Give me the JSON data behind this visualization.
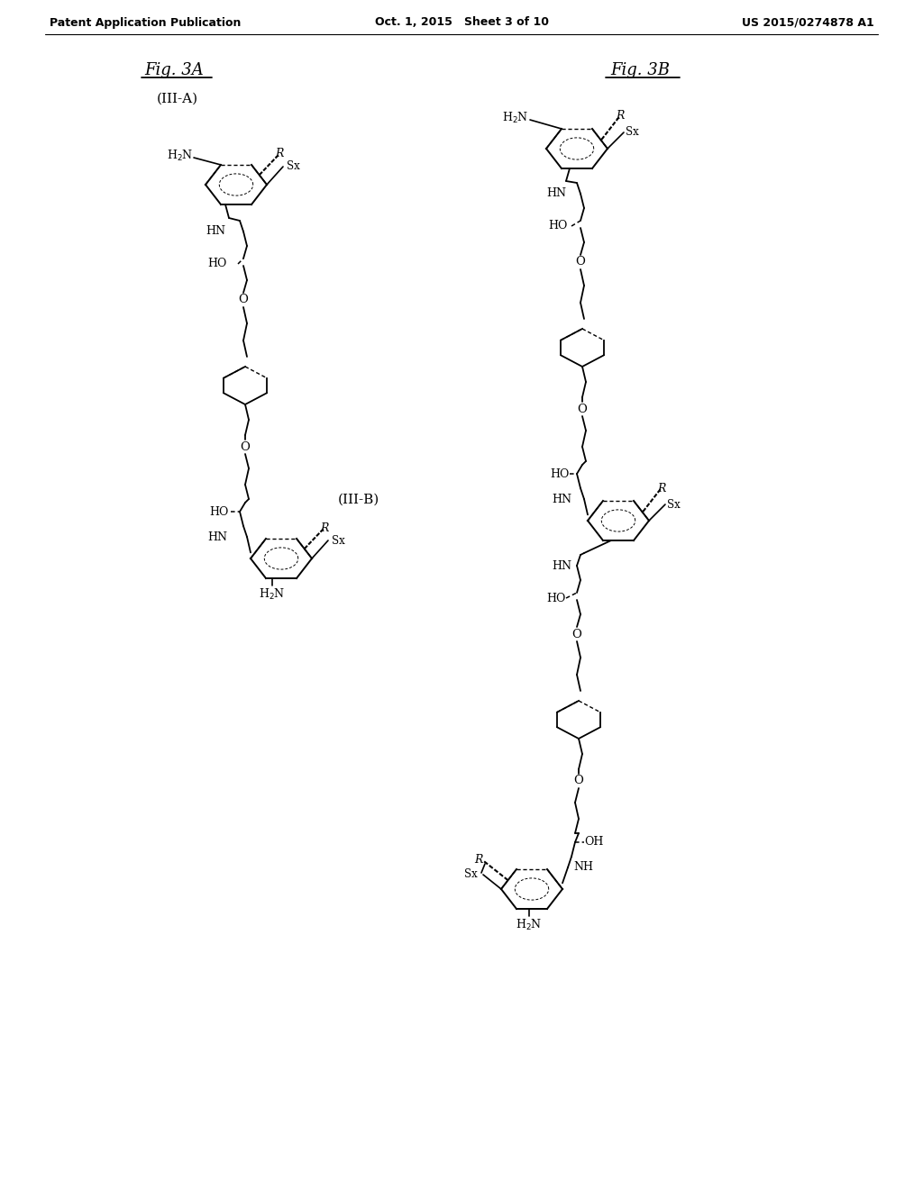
{
  "background_color": "#ffffff",
  "header_left": "Patent Application Publication",
  "header_center": "Oct. 1, 2015   Sheet 3 of 10",
  "header_right": "US 2015/0274878 A1",
  "fig3A_label": "Fig. 3A",
  "fig3A_sublabel": "(III-A)",
  "fig3B_label": "Fig. 3B",
  "fig3B_sublabel": "(III-B)"
}
